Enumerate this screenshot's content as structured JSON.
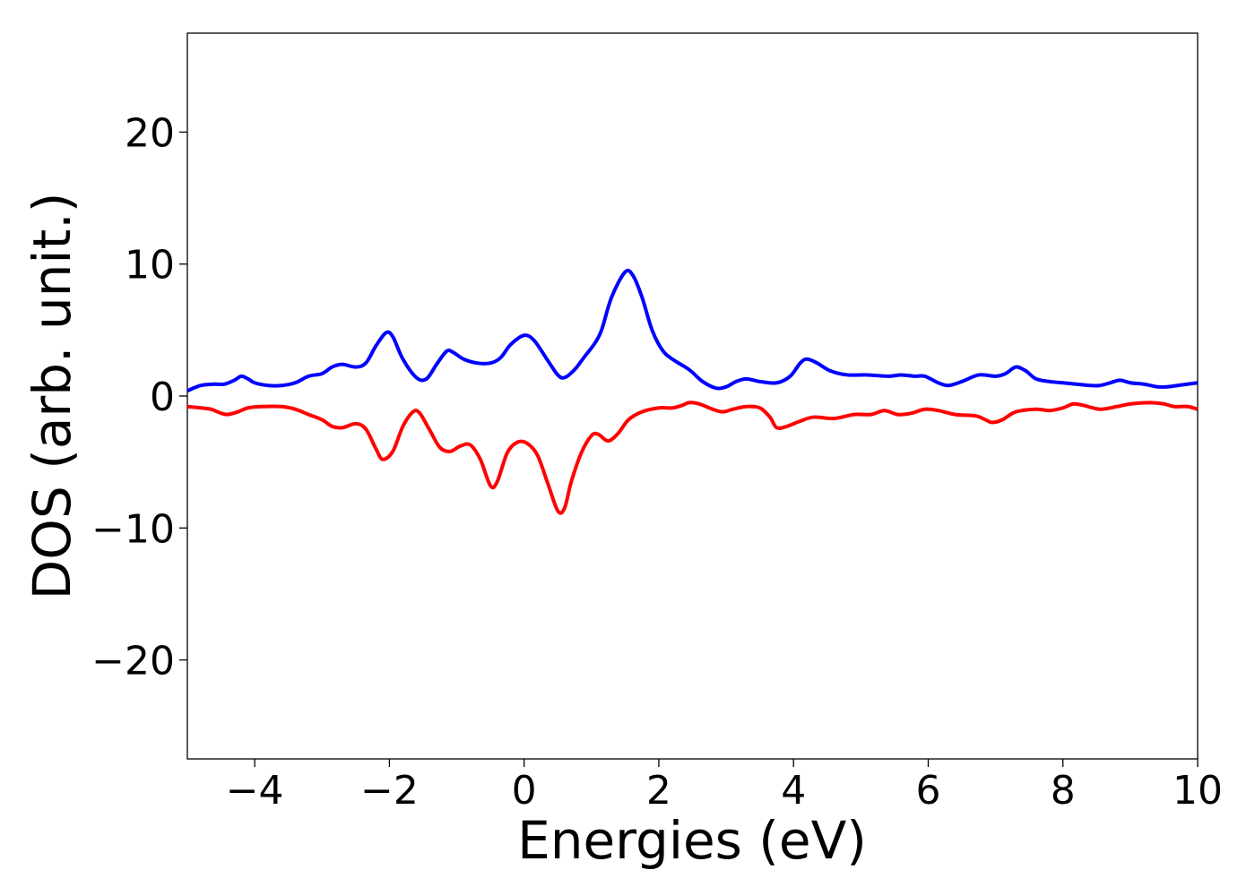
{
  "chart_data": {
    "type": "line",
    "title": "",
    "xlabel": "Energies (eV)",
    "ylabel": "DOS (arb. unit.)",
    "xlim": [
      -5,
      10
    ],
    "ylim": [
      -27.5,
      27.5
    ],
    "xticks": [
      -4,
      -2,
      0,
      2,
      4,
      6,
      8,
      10
    ],
    "yticks": [
      -20,
      -10,
      0,
      10,
      20
    ],
    "grid": false,
    "legend": "none",
    "series": [
      {
        "color": "#0000ff",
        "points": [
          [
            -5.0,
            0.4
          ],
          [
            -4.8,
            0.8
          ],
          [
            -4.6,
            0.9
          ],
          [
            -4.45,
            0.9
          ],
          [
            -4.3,
            1.2
          ],
          [
            -4.2,
            1.5
          ],
          [
            -4.1,
            1.3
          ],
          [
            -4.0,
            1.0
          ],
          [
            -3.8,
            0.8
          ],
          [
            -3.6,
            0.8
          ],
          [
            -3.4,
            1.0
          ],
          [
            -3.2,
            1.5
          ],
          [
            -3.0,
            1.7
          ],
          [
            -2.85,
            2.2
          ],
          [
            -2.7,
            2.4
          ],
          [
            -2.5,
            2.2
          ],
          [
            -2.35,
            2.5
          ],
          [
            -2.2,
            3.8
          ],
          [
            -2.05,
            4.8
          ],
          [
            -1.95,
            4.5
          ],
          [
            -1.8,
            2.8
          ],
          [
            -1.6,
            1.4
          ],
          [
            -1.45,
            1.3
          ],
          [
            -1.3,
            2.4
          ],
          [
            -1.15,
            3.4
          ],
          [
            -1.05,
            3.3
          ],
          [
            -0.9,
            2.8
          ],
          [
            -0.7,
            2.5
          ],
          [
            -0.5,
            2.5
          ],
          [
            -0.35,
            2.9
          ],
          [
            -0.2,
            3.9
          ],
          [
            0.0,
            4.6
          ],
          [
            0.15,
            4.2
          ],
          [
            0.35,
            2.7
          ],
          [
            0.5,
            1.6
          ],
          [
            0.6,
            1.4
          ],
          [
            0.75,
            2.0
          ],
          [
            0.9,
            3.0
          ],
          [
            1.05,
            4.0
          ],
          [
            1.15,
            5.0
          ],
          [
            1.3,
            7.5
          ],
          [
            1.5,
            9.4
          ],
          [
            1.62,
            9.1
          ],
          [
            1.75,
            7.5
          ],
          [
            1.9,
            5.0
          ],
          [
            2.05,
            3.5
          ],
          [
            2.2,
            2.8
          ],
          [
            2.45,
            2.0
          ],
          [
            2.65,
            1.1
          ],
          [
            2.85,
            0.6
          ],
          [
            3.0,
            0.7
          ],
          [
            3.15,
            1.1
          ],
          [
            3.3,
            1.3
          ],
          [
            3.5,
            1.1
          ],
          [
            3.75,
            1.0
          ],
          [
            3.95,
            1.5
          ],
          [
            4.1,
            2.5
          ],
          [
            4.2,
            2.8
          ],
          [
            4.35,
            2.5
          ],
          [
            4.55,
            1.9
          ],
          [
            4.8,
            1.6
          ],
          [
            5.1,
            1.6
          ],
          [
            5.4,
            1.5
          ],
          [
            5.6,
            1.6
          ],
          [
            5.8,
            1.5
          ],
          [
            5.95,
            1.5
          ],
          [
            6.15,
            1.0
          ],
          [
            6.3,
            0.8
          ],
          [
            6.5,
            1.1
          ],
          [
            6.75,
            1.6
          ],
          [
            7.0,
            1.5
          ],
          [
            7.15,
            1.7
          ],
          [
            7.3,
            2.2
          ],
          [
            7.45,
            1.9
          ],
          [
            7.6,
            1.3
          ],
          [
            7.8,
            1.1
          ],
          [
            8.0,
            1.0
          ],
          [
            8.2,
            0.9
          ],
          [
            8.4,
            0.8
          ],
          [
            8.55,
            0.8
          ],
          [
            8.7,
            1.0
          ],
          [
            8.85,
            1.2
          ],
          [
            9.0,
            1.0
          ],
          [
            9.2,
            0.9
          ],
          [
            9.4,
            0.7
          ],
          [
            9.55,
            0.7
          ],
          [
            9.7,
            0.8
          ],
          [
            9.85,
            0.9
          ],
          [
            10.0,
            1.0
          ]
        ]
      },
      {
        "color": "#ff0000",
        "points": [
          [
            -5.0,
            -0.8
          ],
          [
            -4.8,
            -0.9
          ],
          [
            -4.65,
            -1.0
          ],
          [
            -4.5,
            -1.3
          ],
          [
            -4.4,
            -1.4
          ],
          [
            -4.25,
            -1.2
          ],
          [
            -4.1,
            -0.9
          ],
          [
            -3.9,
            -0.8
          ],
          [
            -3.6,
            -0.8
          ],
          [
            -3.4,
            -1.0
          ],
          [
            -3.2,
            -1.4
          ],
          [
            -3.0,
            -1.8
          ],
          [
            -2.85,
            -2.3
          ],
          [
            -2.7,
            -2.4
          ],
          [
            -2.5,
            -2.1
          ],
          [
            -2.35,
            -2.5
          ],
          [
            -2.2,
            -4.0
          ],
          [
            -2.1,
            -4.8
          ],
          [
            -1.95,
            -4.2
          ],
          [
            -1.8,
            -2.3
          ],
          [
            -1.65,
            -1.2
          ],
          [
            -1.55,
            -1.3
          ],
          [
            -1.4,
            -2.6
          ],
          [
            -1.25,
            -3.9
          ],
          [
            -1.1,
            -4.2
          ],
          [
            -0.95,
            -3.8
          ],
          [
            -0.8,
            -3.7
          ],
          [
            -0.65,
            -4.8
          ],
          [
            -0.5,
            -6.8
          ],
          [
            -0.4,
            -6.5
          ],
          [
            -0.25,
            -4.3
          ],
          [
            -0.1,
            -3.5
          ],
          [
            0.05,
            -3.6
          ],
          [
            0.2,
            -4.5
          ],
          [
            0.35,
            -6.6
          ],
          [
            0.5,
            -8.7
          ],
          [
            0.6,
            -8.5
          ],
          [
            0.7,
            -6.5
          ],
          [
            0.85,
            -4.3
          ],
          [
            1.0,
            -3.0
          ],
          [
            1.1,
            -2.9
          ],
          [
            1.25,
            -3.4
          ],
          [
            1.4,
            -2.8
          ],
          [
            1.55,
            -1.8
          ],
          [
            1.75,
            -1.2
          ],
          [
            2.0,
            -0.9
          ],
          [
            2.2,
            -0.9
          ],
          [
            2.35,
            -0.7
          ],
          [
            2.45,
            -0.5
          ],
          [
            2.6,
            -0.6
          ],
          [
            2.8,
            -1.0
          ],
          [
            2.95,
            -1.2
          ],
          [
            3.1,
            -1.0
          ],
          [
            3.3,
            -0.8
          ],
          [
            3.5,
            -0.9
          ],
          [
            3.65,
            -1.6
          ],
          [
            3.75,
            -2.4
          ],
          [
            3.9,
            -2.3
          ],
          [
            4.1,
            -1.9
          ],
          [
            4.3,
            -1.6
          ],
          [
            4.6,
            -1.7
          ],
          [
            4.9,
            -1.4
          ],
          [
            5.15,
            -1.4
          ],
          [
            5.35,
            -1.1
          ],
          [
            5.55,
            -1.4
          ],
          [
            5.75,
            -1.3
          ],
          [
            5.95,
            -1.0
          ],
          [
            6.15,
            -1.1
          ],
          [
            6.4,
            -1.4
          ],
          [
            6.7,
            -1.5
          ],
          [
            6.85,
            -1.8
          ],
          [
            6.95,
            -2.0
          ],
          [
            7.1,
            -1.8
          ],
          [
            7.3,
            -1.2
          ],
          [
            7.6,
            -1.0
          ],
          [
            7.8,
            -1.1
          ],
          [
            8.0,
            -0.9
          ],
          [
            8.15,
            -0.6
          ],
          [
            8.3,
            -0.7
          ],
          [
            8.55,
            -1.0
          ],
          [
            8.8,
            -0.8
          ],
          [
            9.0,
            -0.6
          ],
          [
            9.3,
            -0.5
          ],
          [
            9.5,
            -0.6
          ],
          [
            9.65,
            -0.8
          ],
          [
            9.85,
            -0.8
          ],
          [
            10.0,
            -1.0
          ]
        ]
      }
    ]
  }
}
